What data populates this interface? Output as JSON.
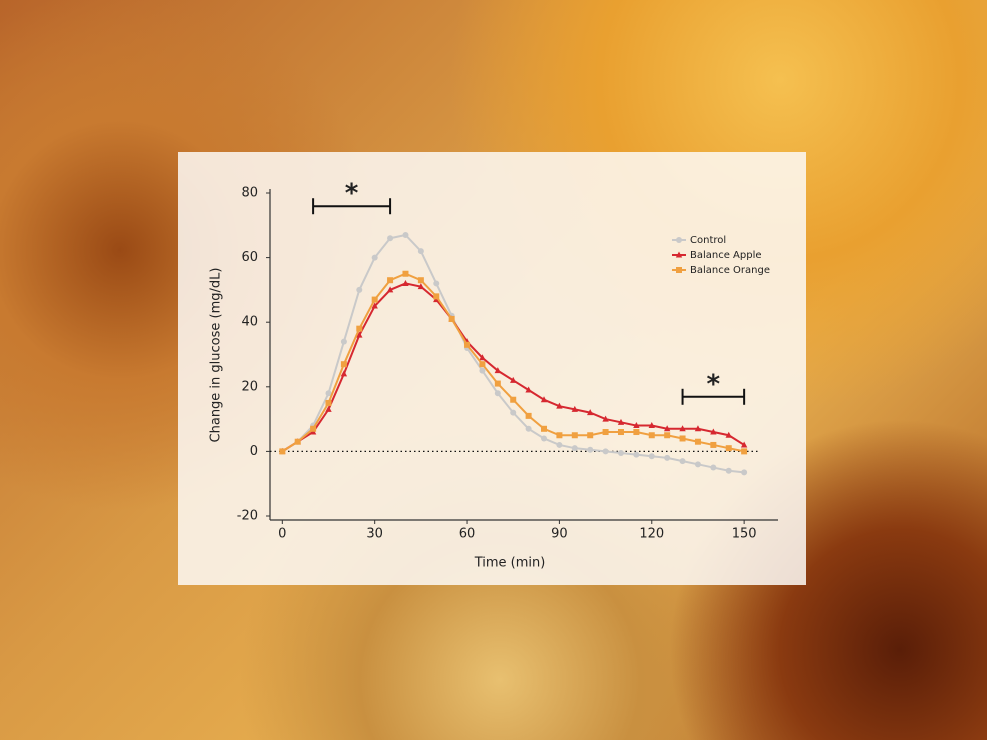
{
  "chart_data": {
    "type": "line",
    "x_label": "Time (min)",
    "y_label": "Change in glucose (mg/dL)",
    "x": [
      0,
      5,
      10,
      15,
      20,
      25,
      30,
      35,
      40,
      45,
      50,
      55,
      60,
      65,
      70,
      75,
      80,
      85,
      90,
      95,
      100,
      105,
      110,
      115,
      120,
      125,
      130,
      135,
      140,
      145,
      150
    ],
    "series": [
      {
        "name": "Control",
        "color": "#c9c9c9",
        "marker": "circle",
        "values": [
          0,
          3,
          8,
          18,
          34,
          50,
          60,
          66,
          67,
          62,
          52,
          42,
          32,
          25,
          18,
          12,
          7,
          4,
          2,
          1,
          0.5,
          0,
          -0.5,
          -1,
          -1.5,
          -2,
          -3,
          -4,
          -5,
          -6,
          -6.5
        ]
      },
      {
        "name": "Balance Apple",
        "color": "#d62830",
        "marker": "triangle",
        "values": [
          0,
          3,
          6,
          13,
          24,
          36,
          45,
          50,
          52,
          51,
          47,
          41,
          34,
          29,
          25,
          22,
          19,
          16,
          14,
          13,
          12,
          10,
          9,
          8,
          8,
          7,
          7,
          7,
          6,
          5,
          2
        ]
      },
      {
        "name": "Balance Orange",
        "color": "#f0a040",
        "marker": "square",
        "values": [
          0,
          3,
          7,
          15,
          27,
          38,
          47,
          53,
          55,
          53,
          48,
          41,
          33,
          27,
          21,
          16,
          11,
          7,
          5,
          5,
          5,
          6,
          6,
          6,
          5,
          5,
          4,
          3,
          2,
          1,
          0
        ]
      }
    ],
    "xlim": [
      -4,
      161
    ],
    "ylim": [
      -20,
      80
    ],
    "xticks": [
      0,
      30,
      60,
      90,
      120,
      150
    ],
    "yticks": [
      -20,
      0,
      20,
      40,
      60,
      80
    ],
    "reference_line": 0,
    "significance": [
      {
        "label": "*",
        "range": [
          10,
          35
        ]
      },
      {
        "label": "*",
        "range": [
          130,
          150
        ]
      }
    ],
    "legend": "upper right"
  }
}
